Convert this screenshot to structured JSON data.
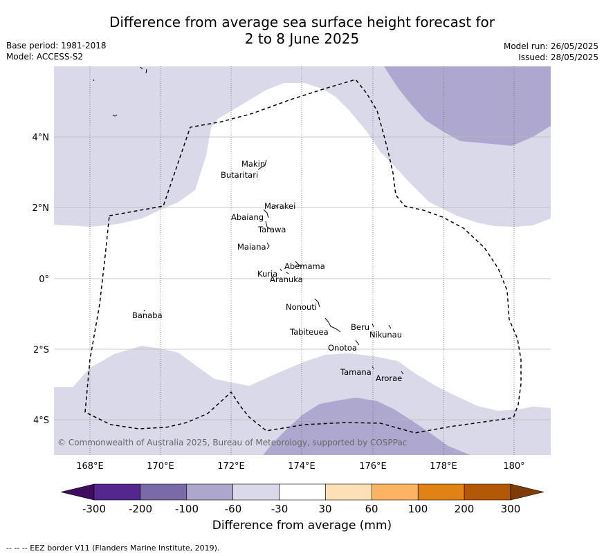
{
  "title_line1": "Difference from average sea surface height forecast for",
  "title_line2": "2 to 8 June 2025",
  "meta_left": [
    "Base period: 1981-2018",
    "Model: ACCESS-S2"
  ],
  "meta_right": [
    "Model run: 26/05/2025",
    "Issued: 28/05/2025"
  ],
  "lat_labels": [
    "4°N",
    "2°N",
    "0°",
    "2°S",
    "4°S"
  ],
  "lon_labels": [
    "168°E",
    "170°E",
    "172°E",
    "174°E",
    "176°E",
    "178°E",
    "180°"
  ],
  "places": [
    "Makin",
    "Butaritari",
    "Marakei",
    "Abaiang",
    "Tarawa",
    "Maiana",
    "Abemama",
    "Kuria",
    "Aranuka",
    "Nonouti",
    "Banaba",
    "Tabiteuea",
    "Beru",
    "Nikunau",
    "Onotoa",
    "Tamana",
    "Arorae"
  ],
  "copyright": "© Commonwealth of Australia 2025, Bureau of Meteorology, supported by COSPPac",
  "colorbar": {
    "ticks": [
      "-300",
      "-200",
      "-100",
      "-60",
      "-30",
      "30",
      "60",
      "100",
      "200",
      "300"
    ],
    "title": "Difference from average (mm)",
    "colors": [
      "#3f0d5f",
      "#54278f",
      "#7b6aa8",
      "#ada7ce",
      "#d9d9ea",
      "#ffffff",
      "#fee0b6",
      "#fdb462",
      "#e08214",
      "#b35806",
      "#7f3b08"
    ]
  },
  "footnote": "--  --  -- EEZ border V11 (Flanders Marine Institute, 2019)."
}
